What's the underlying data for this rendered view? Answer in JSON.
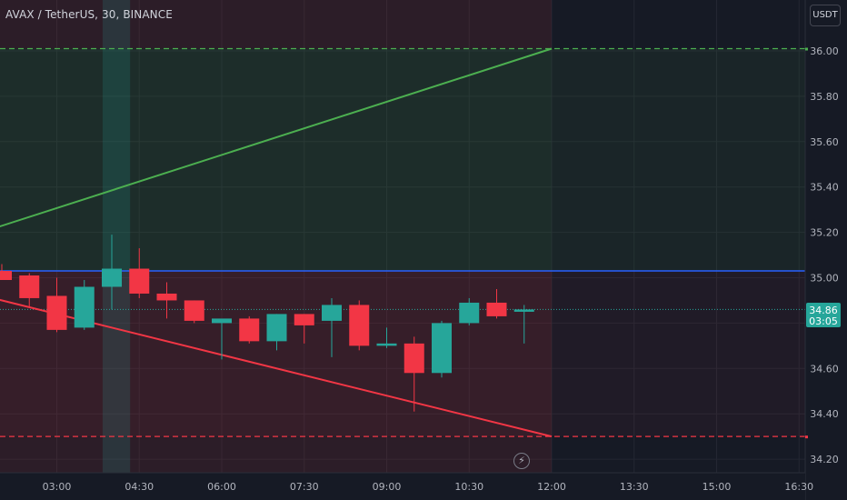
{
  "header": {
    "title": "AVAX / TetherUS, 30, BINANCE"
  },
  "currency_button": {
    "label": "USDT"
  },
  "price_badge": {
    "price": "34.86",
    "countdown": "03:05"
  },
  "bolt_icon": "lightning-icon",
  "colors": {
    "up": "#26a69a",
    "down": "#f23645",
    "blue_line": "#2962ff",
    "target_line": "#4caf50",
    "stop_line": "#f23645",
    "background": "#161a25"
  },
  "chart_data": {
    "type": "candlestick",
    "y_axis": {
      "ticks": [
        "36.00",
        "35.80",
        "35.60",
        "35.40",
        "35.20",
        "35.00",
        "34.80",
        "34.60",
        "34.40",
        "34.20"
      ],
      "range": [
        34.16,
        36.22
      ]
    },
    "x_axis": {
      "ticks": [
        "03:00",
        "04:30",
        "06:00",
        "07:30",
        "09:00",
        "10:30",
        "12:00",
        "13:30",
        "15:00",
        "16:30"
      ]
    },
    "candles": [
      {
        "t": "02:00",
        "o": 35.03,
        "h": 35.06,
        "l": 34.99,
        "c": 34.99
      },
      {
        "t": "02:30",
        "o": 35.01,
        "h": 35.02,
        "l": 34.87,
        "c": 34.91
      },
      {
        "t": "03:00",
        "o": 34.92,
        "h": 35.0,
        "l": 34.76,
        "c": 34.77
      },
      {
        "t": "03:30",
        "o": 34.78,
        "h": 34.99,
        "l": 34.77,
        "c": 34.96
      },
      {
        "t": "04:00",
        "o": 34.96,
        "h": 35.19,
        "l": 34.86,
        "c": 35.04
      },
      {
        "t": "04:30",
        "o": 35.04,
        "h": 35.13,
        "l": 34.91,
        "c": 34.93
      },
      {
        "t": "05:00",
        "o": 34.93,
        "h": 34.98,
        "l": 34.82,
        "c": 34.9
      },
      {
        "t": "05:30",
        "o": 34.9,
        "h": 34.9,
        "l": 34.8,
        "c": 34.81
      },
      {
        "t": "06:00",
        "o": 34.8,
        "h": 34.81,
        "l": 34.64,
        "c": 34.82
      },
      {
        "t": "06:30",
        "o": 34.82,
        "h": 34.83,
        "l": 34.71,
        "c": 34.72
      },
      {
        "t": "07:00",
        "o": 34.72,
        "h": 34.84,
        "l": 34.68,
        "c": 34.84
      },
      {
        "t": "07:30",
        "o": 34.84,
        "h": 34.84,
        "l": 34.71,
        "c": 34.79
      },
      {
        "t": "08:00",
        "o": 34.81,
        "h": 34.91,
        "l": 34.65,
        "c": 34.88
      },
      {
        "t": "08:30",
        "o": 34.88,
        "h": 34.9,
        "l": 34.68,
        "c": 34.7
      },
      {
        "t": "09:00",
        "o": 34.7,
        "h": 34.78,
        "l": 34.69,
        "c": 34.71
      },
      {
        "t": "09:30",
        "o": 34.71,
        "h": 34.74,
        "l": 34.41,
        "c": 34.58
      },
      {
        "t": "10:00",
        "o": 34.58,
        "h": 34.81,
        "l": 34.56,
        "c": 34.8
      },
      {
        "t": "10:30",
        "o": 34.8,
        "h": 34.91,
        "l": 34.79,
        "c": 34.89
      },
      {
        "t": "11:00",
        "o": 34.89,
        "h": 34.95,
        "l": 34.82,
        "c": 34.83
      },
      {
        "t": "11:30",
        "o": 34.85,
        "h": 34.88,
        "l": 34.71,
        "c": 34.86
      }
    ],
    "levels": {
      "entry": 35.03,
      "target": 36.01,
      "stop": 34.3,
      "current": 34.86
    },
    "trendlines": [
      {
        "name": "",
        "from": {
          "t": "01:30",
          "p": 35.19
        },
        "to": {
          "t": "12:00",
          "p": 36.01
        }
      },
      {
        "name": "",
        "from": {
          "t": "01:30",
          "p": 34.93
        },
        "to": {
          "t": "12:00",
          "p": 34.3
        }
      }
    ],
    "highlight": {
      "from": "03:50",
      "to": "04:20"
    },
    "position_zone": {
      "from": "01:30",
      "to": "12:00"
    },
    "grid": true
  }
}
